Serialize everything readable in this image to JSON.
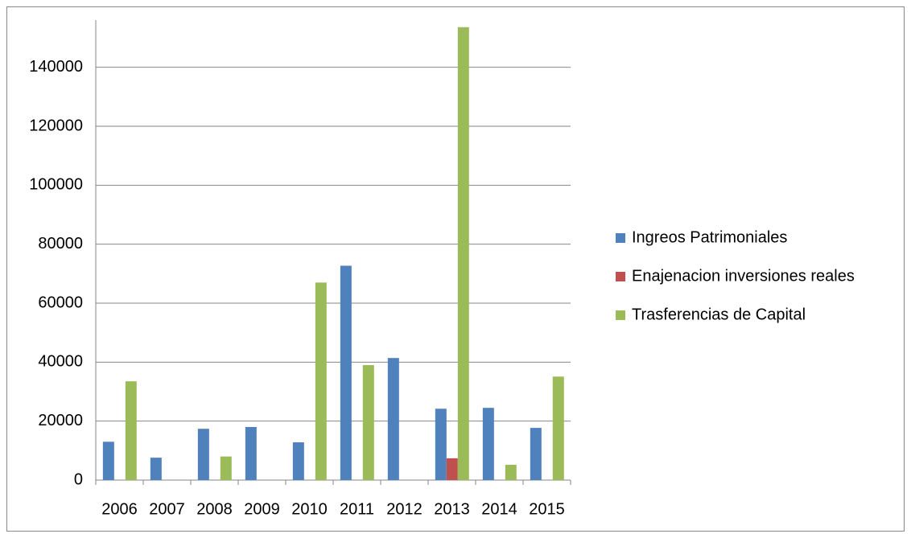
{
  "chart_data": {
    "type": "bar",
    "categories": [
      "2006",
      "2007",
      "2008",
      "2009",
      "2010",
      "2011",
      "2012",
      "2013",
      "2014",
      "2015"
    ],
    "series": [
      {
        "name": "Ingreos Patrimoniales",
        "color": "#4f81bd",
        "values": [
          13000,
          7600,
          17400,
          18000,
          12800,
          72700,
          41400,
          24200,
          24500,
          17700
        ]
      },
      {
        "name": "Enajenacion inversiones reales",
        "color": "#c0504d",
        "values": [
          0,
          0,
          0,
          0,
          0,
          0,
          0,
          7400,
          0,
          0
        ]
      },
      {
        "name": "Trasferencias de Capital",
        "color": "#9bbb59",
        "values": [
          33500,
          0,
          8000,
          0,
          67000,
          39000,
          0,
          153600,
          5200,
          35100
        ]
      }
    ],
    "ylim": [
      0,
      156000
    ],
    "yticks": [
      0,
      20000,
      40000,
      60000,
      80000,
      100000,
      120000,
      140000
    ],
    "grid": true,
    "legend": "right"
  }
}
